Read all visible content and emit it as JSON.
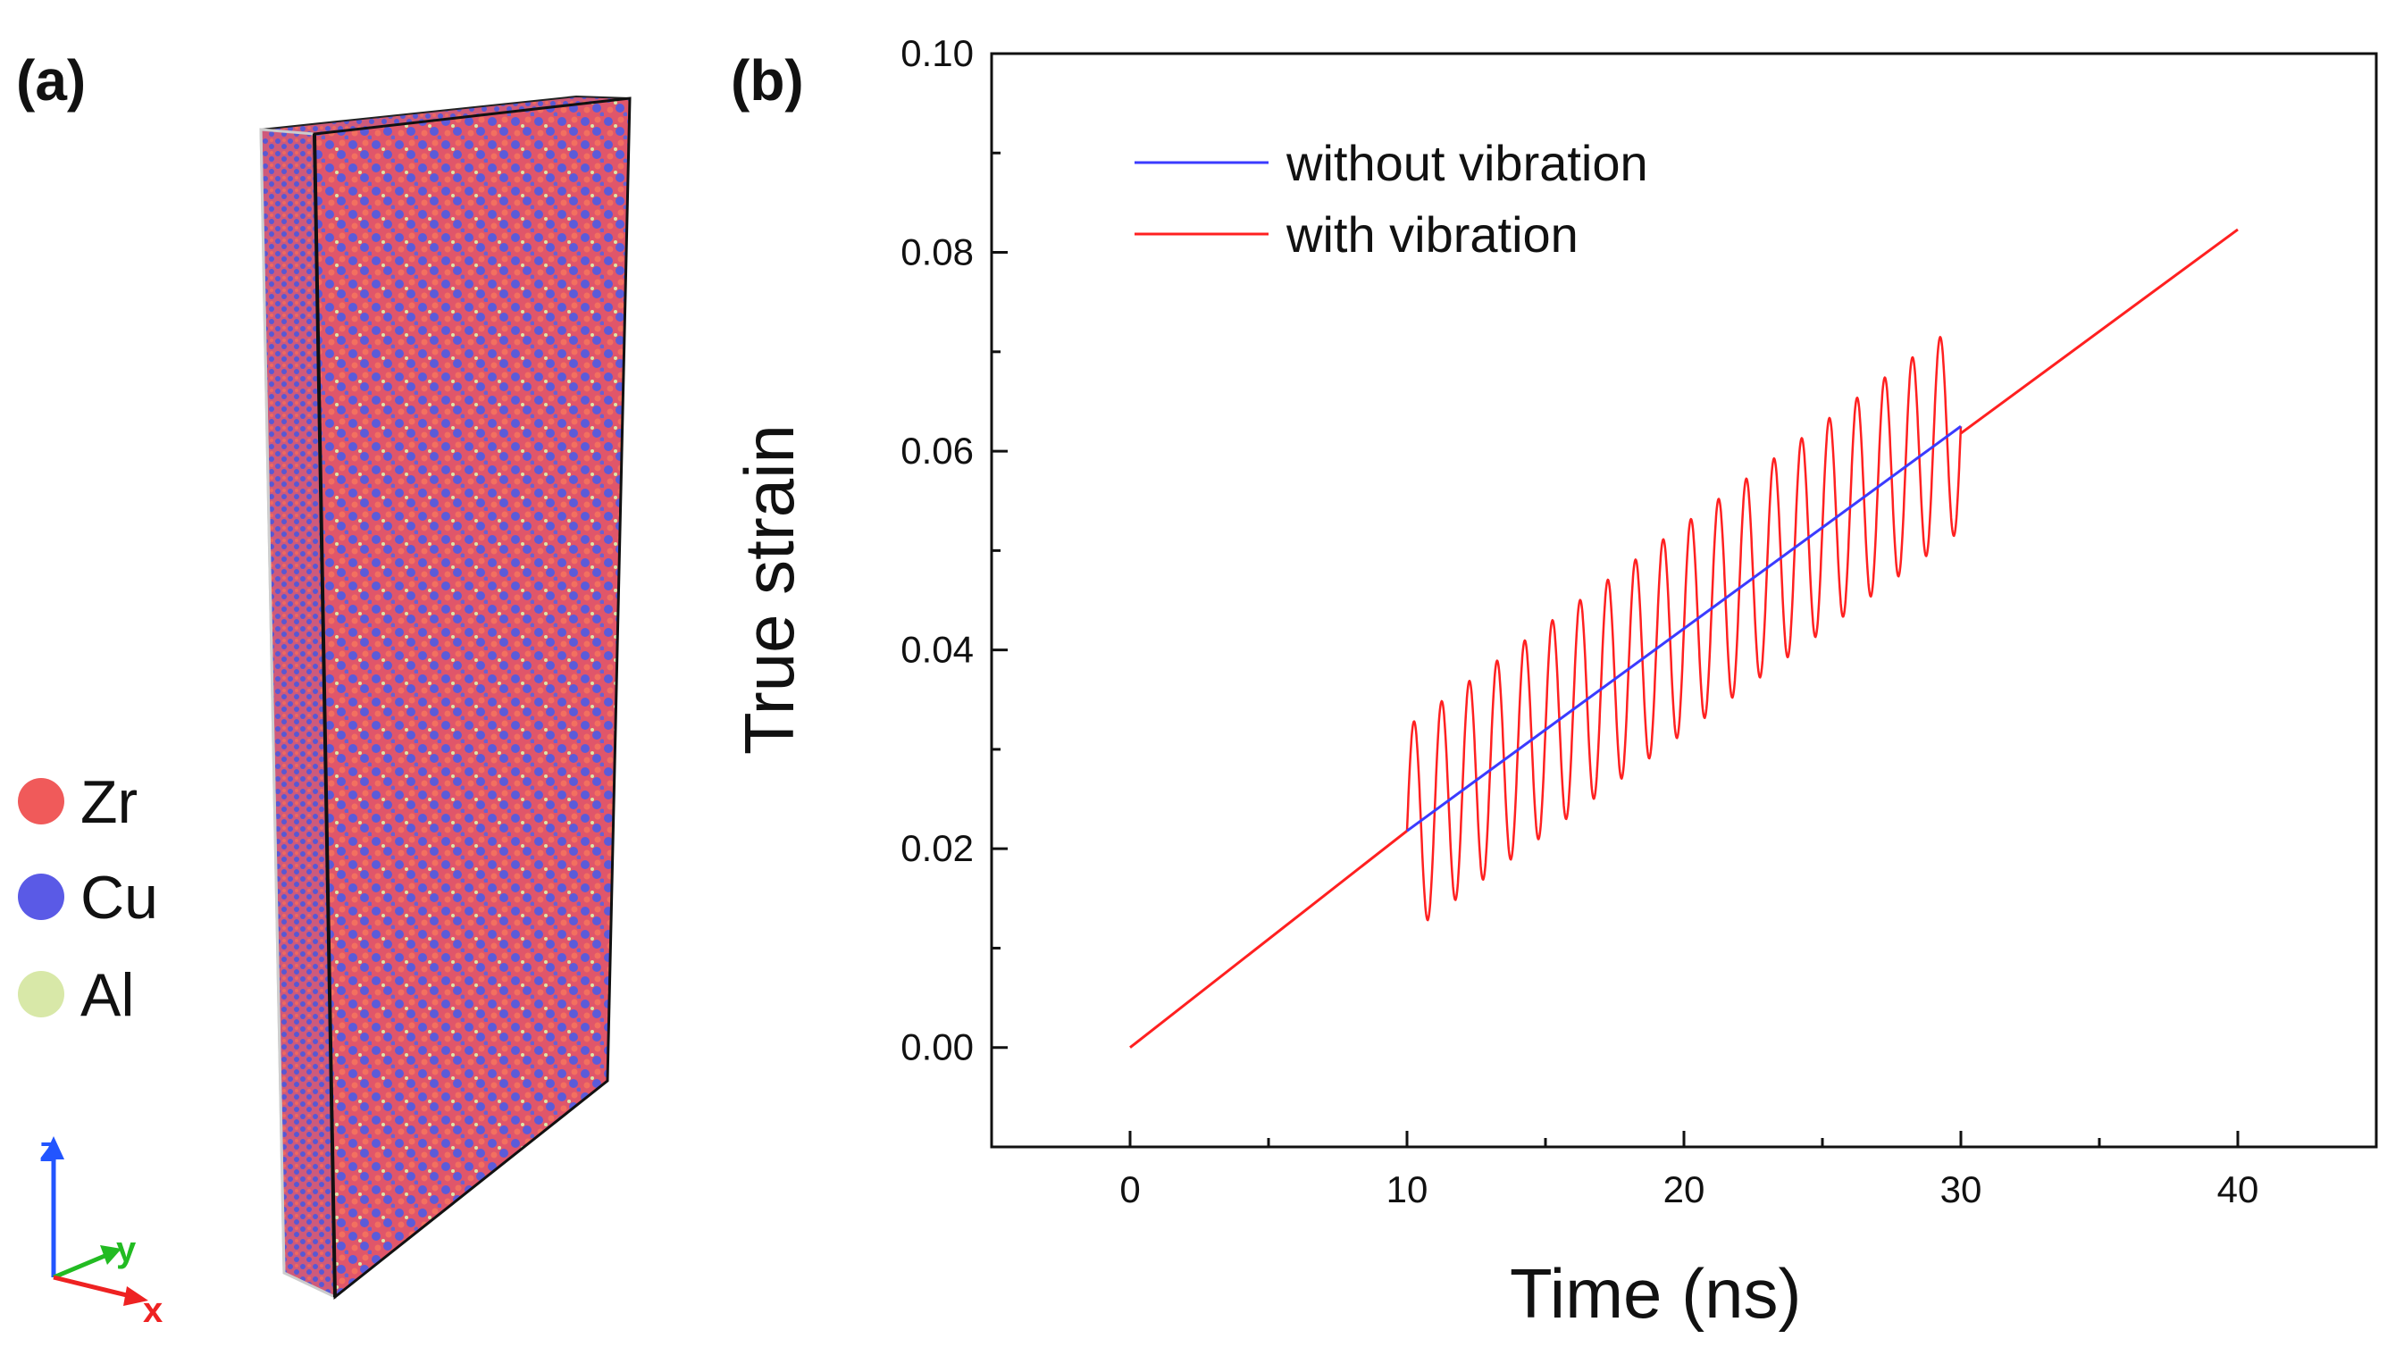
{
  "panel_a": {
    "label": "(a)",
    "legend": [
      {
        "element": "Zr",
        "color": "#f05a5a"
      },
      {
        "element": "Cu",
        "color": "#5a5ae6"
      },
      {
        "element": "Al",
        "color": "#d8e8a8"
      }
    ],
    "axes_triad": {
      "z_label": "z",
      "y_label": "y",
      "x_label": "x",
      "z_color": "#2255ff",
      "y_color": "#22bb22",
      "x_color": "#ee2222"
    }
  },
  "panel_b": {
    "label": "(b)"
  },
  "chart_data": {
    "type": "line",
    "title": "",
    "xlabel": "Time (ns)",
    "ylabel": "True strain",
    "xlim": [
      -5,
      45
    ],
    "ylim": [
      -0.01,
      0.1
    ],
    "xticks": [
      0,
      10,
      20,
      30,
      40
    ],
    "xtick_labels": [
      "0",
      "10",
      "20",
      "30",
      "40"
    ],
    "yticks": [
      0.0,
      0.02,
      0.04,
      0.06,
      0.08,
      0.1
    ],
    "ytick_labels": [
      "0.00",
      "0.02",
      "0.04",
      "0.06",
      "0.08",
      "0.10"
    ],
    "legend_position": "top-left",
    "series": [
      {
        "name": "without vibration",
        "color": "#3b3bff",
        "x": [
          10,
          30
        ],
        "y": [
          0.0218,
          0.0625
        ]
      },
      {
        "name": "with vibration",
        "color": "#ff2020",
        "segments": [
          {
            "x": [
              0,
              10
            ],
            "y": [
              0.0,
              0.0218
            ]
          },
          {
            "x": [
              30,
              40
            ],
            "y": [
              0.0618,
              0.0823
            ]
          }
        ],
        "oscillation": {
          "x_start": 10,
          "x_end": 30,
          "baseline_start": 0.0218,
          "baseline_end": 0.0625,
          "amplitude": 0.0105,
          "cycles": 20
        }
      }
    ]
  }
}
